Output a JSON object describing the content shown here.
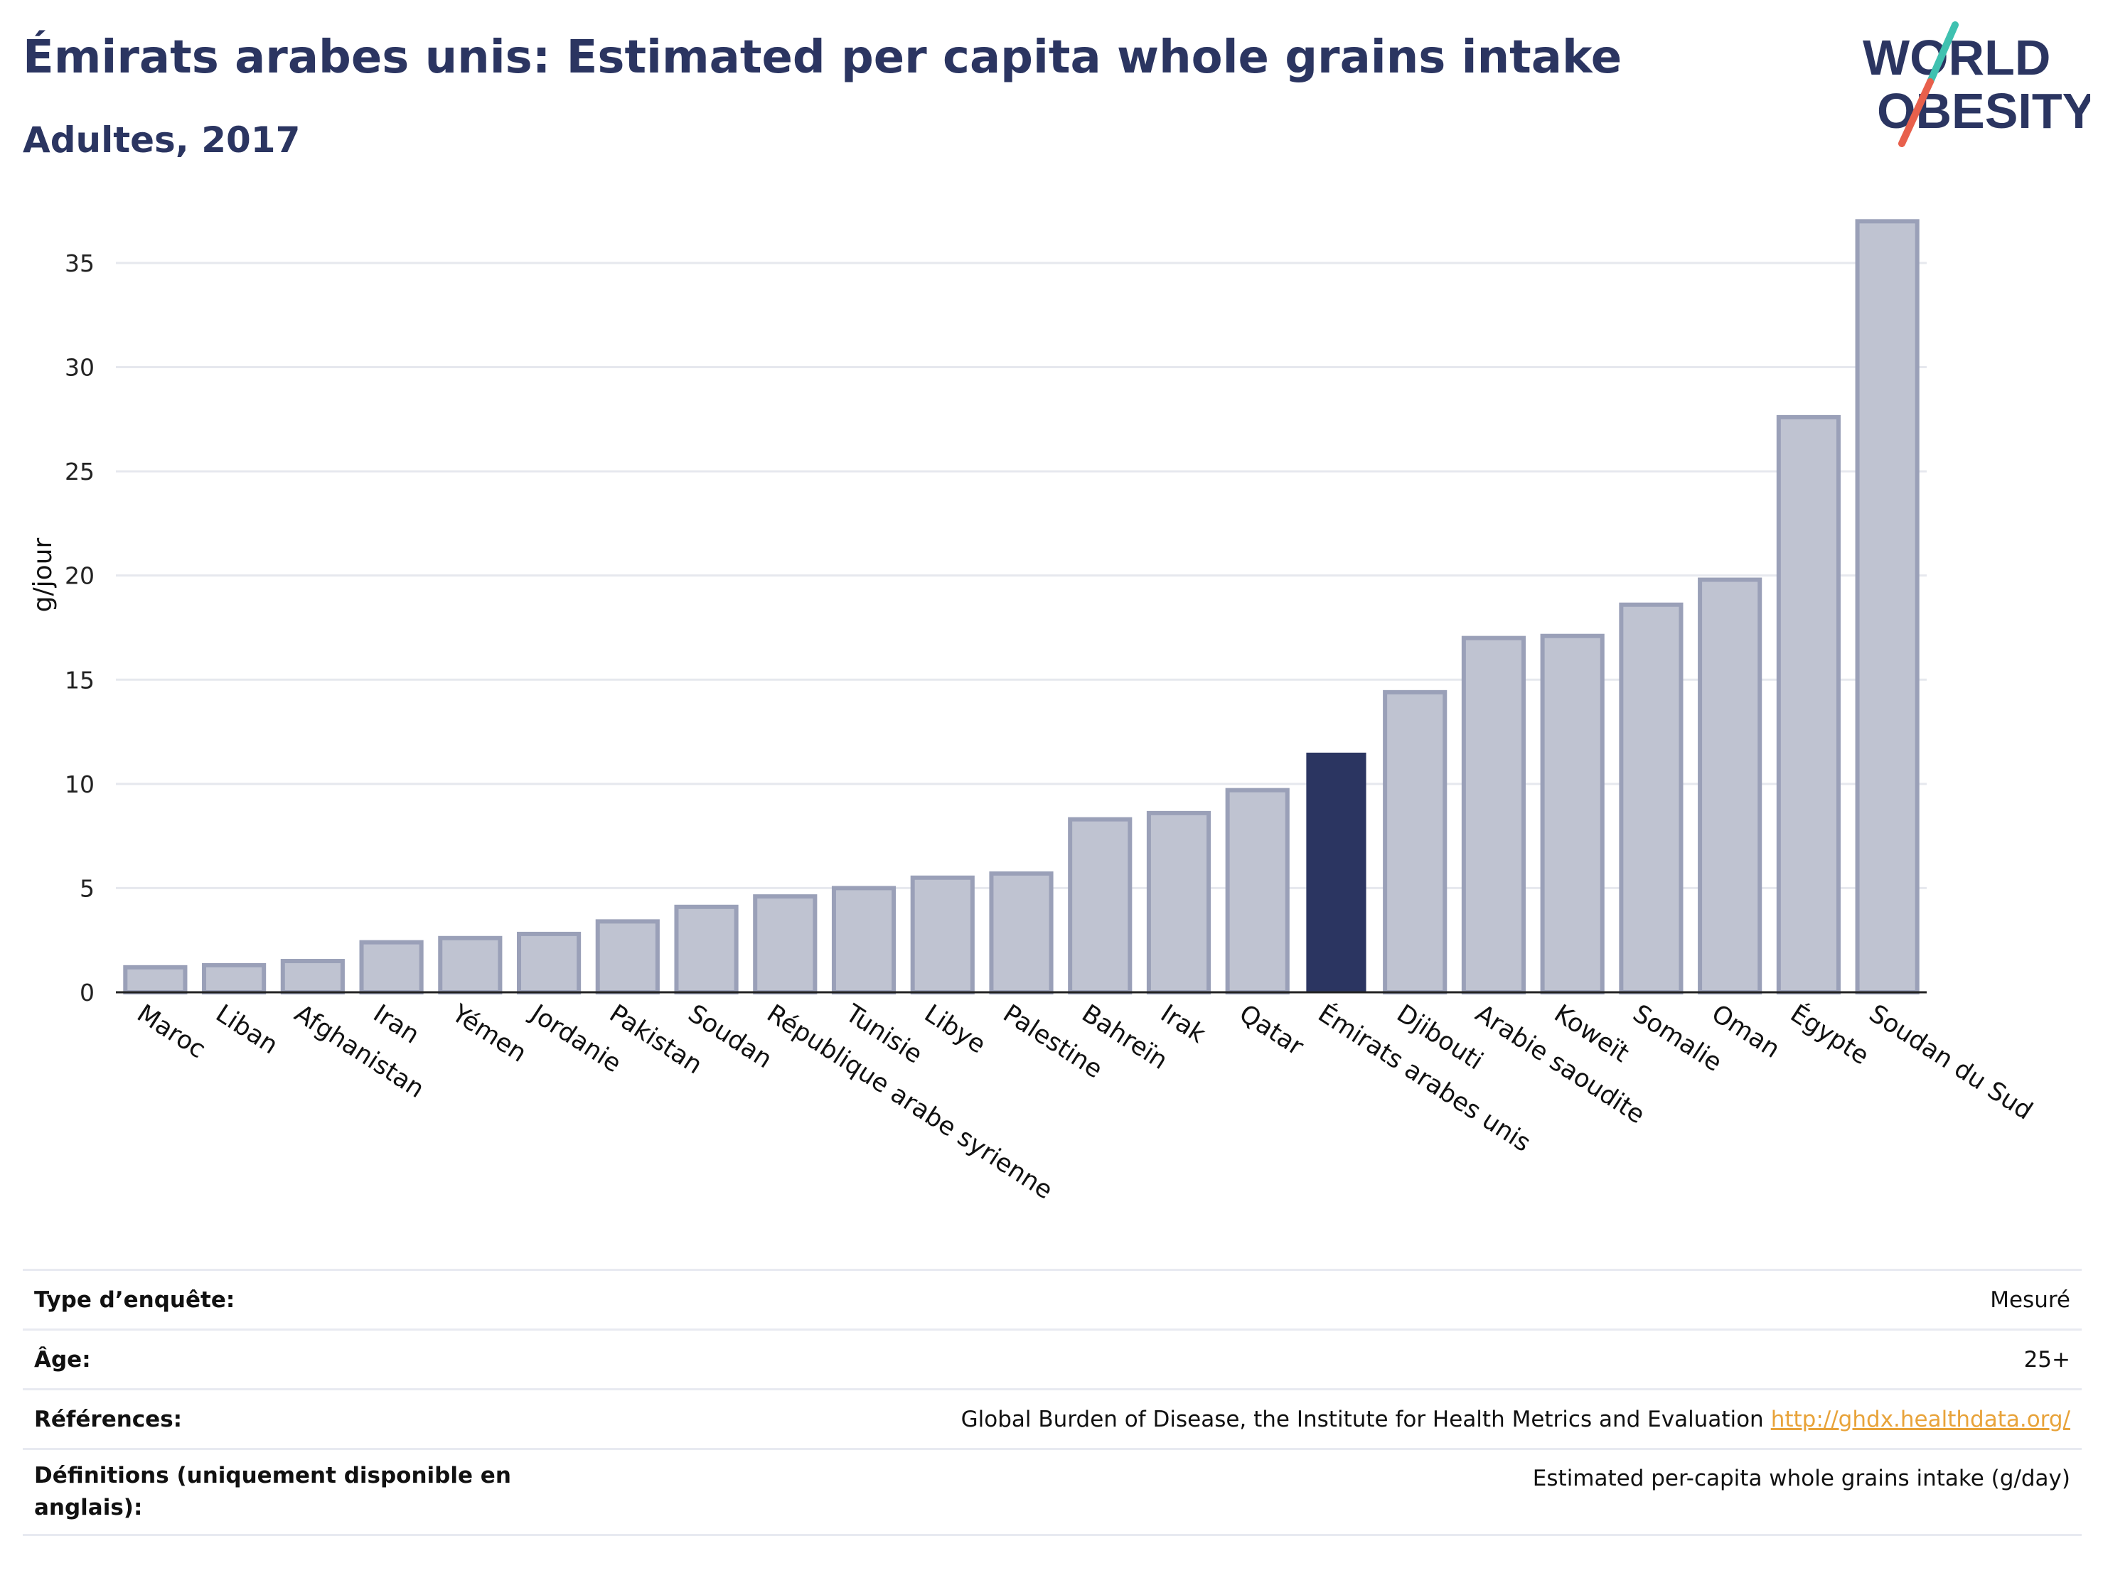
{
  "header": {
    "title": "Émirats arabes unis: Estimated per capita whole grains intake",
    "subtitle": "Adultes, 2017"
  },
  "logo": {
    "line1": "WORLD",
    "line2": "OBESITY",
    "colors": {
      "text": "#2b3561",
      "slash_teal": "#3fc1b0",
      "slash_red": "#e8604c"
    }
  },
  "chart_data": {
    "type": "bar",
    "ylabel": "g/jour",
    "ylim": [
      0,
      38
    ],
    "yticks": [
      0,
      5,
      10,
      15,
      20,
      25,
      30,
      35
    ],
    "grid": true,
    "highlight": "Émirats arabes unis",
    "colors": {
      "default": "#bfc3d1",
      "default_border": "#9aa0b8",
      "highlight": "#2b3561"
    },
    "categories": [
      "Maroc",
      "Liban",
      "Afghanistan",
      "Iran",
      "Yémen",
      "Jordanie",
      "Pakistan",
      "Soudan",
      "République arabe syrienne",
      "Tunisie",
      "Libye",
      "Palestine",
      "Bahreïn",
      "Irak",
      "Qatar",
      "Émirats arabes unis",
      "Djibouti",
      "Arabie saoudite",
      "Koweït",
      "Somalie",
      "Oman",
      "Égypte",
      "Soudan du Sud"
    ],
    "values": [
      1.2,
      1.3,
      1.5,
      2.4,
      2.6,
      2.8,
      3.4,
      4.1,
      4.6,
      5.0,
      5.5,
      5.7,
      8.3,
      8.6,
      9.7,
      11.5,
      14.4,
      17.0,
      17.1,
      18.6,
      19.8,
      27.6,
      37.0
    ]
  },
  "meta": {
    "rows": [
      {
        "label": "Type d’enquête:",
        "value": "Mesuré"
      },
      {
        "label": "Âge:",
        "value": "25+"
      },
      {
        "label": "Références:",
        "value": "Global Burden of Disease, the Institute for Health Metrics and Evaluation",
        "link": "http://ghdx.healthdata.org/"
      },
      {
        "label": "Définitions (uniquement disponible en anglais):",
        "value": "Estimated per-capita whole grains intake (g/day)"
      }
    ]
  }
}
